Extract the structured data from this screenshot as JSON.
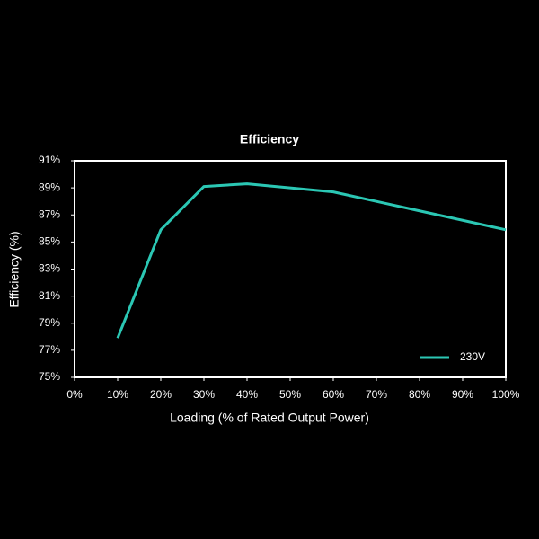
{
  "chart_data": {
    "type": "line",
    "title": "Efficiency",
    "x_label": "Loading (% of Rated Output Power)",
    "y_label": "Efficiency (%)",
    "x": [
      10,
      20,
      30,
      40,
      50,
      60,
      70,
      80,
      90,
      100
    ],
    "series": [
      {
        "name": "230V",
        "color": "#2bc7b4",
        "values": [
          77.9,
          85.9,
          89.1,
          89.3,
          89.0,
          88.7,
          88.0,
          87.3,
          86.6,
          85.9
        ]
      }
    ],
    "xlim": [
      0,
      100
    ],
    "xticks": [
      {
        "value": 0,
        "label": "0%"
      },
      {
        "value": 10,
        "label": "10%"
      },
      {
        "value": 20,
        "label": "20%"
      },
      {
        "value": 30,
        "label": "30%"
      },
      {
        "value": 40,
        "label": "40%"
      },
      {
        "value": 50,
        "label": "50%"
      },
      {
        "value": 60,
        "label": "60%"
      },
      {
        "value": 70,
        "label": "70%"
      },
      {
        "value": 80,
        "label": "80%"
      },
      {
        "value": 90,
        "label": "90%"
      },
      {
        "value": 100,
        "label": "100%"
      }
    ],
    "ylim": [
      75,
      91
    ],
    "yticks": [
      {
        "value": 75,
        "label": "75%"
      },
      {
        "value": 77,
        "label": "77%"
      },
      {
        "value": 79,
        "label": "79%"
      },
      {
        "value": 81,
        "label": "81%"
      },
      {
        "value": 83,
        "label": "83%"
      },
      {
        "value": 85,
        "label": "85%"
      },
      {
        "value": 87,
        "label": "87%"
      },
      {
        "value": 89,
        "label": "89%"
      },
      {
        "value": 91,
        "label": "91%"
      }
    ],
    "legend": "bottom-right",
    "grid": false
  }
}
